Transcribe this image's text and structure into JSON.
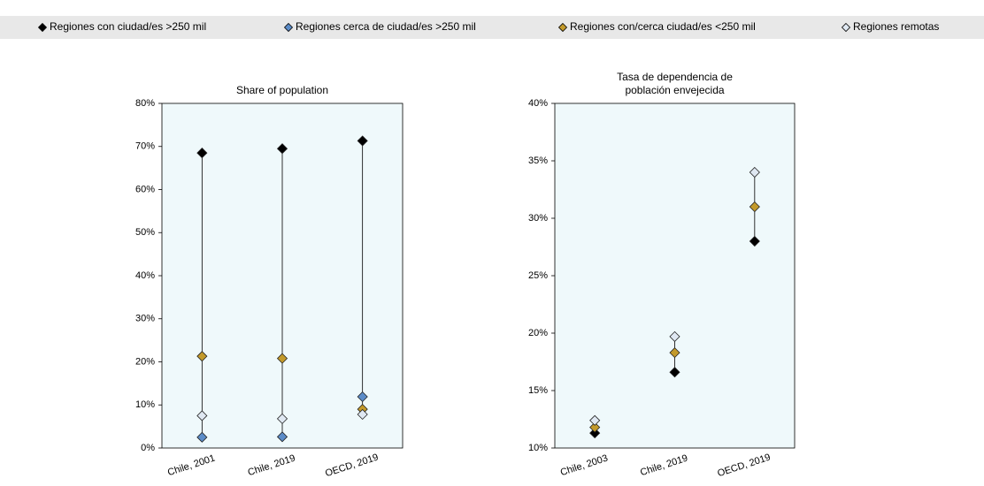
{
  "chart_data": [
    {
      "type": "dot",
      "title": [
        "Share of population"
      ],
      "legend_position": "top",
      "categories": [
        "Chile, 2001",
        "Chile, 2019",
        "OECD, 2019"
      ],
      "series": [
        {
          "name": "Regiones con ciudad/es >250 mil",
          "color": "#000000",
          "values": [
            68.5,
            69.5,
            71.3
          ]
        },
        {
          "name": "Regiones cerca de ciudad/es >250 mil",
          "color": "#5b8cc8",
          "values": [
            2.5,
            2.6,
            11.9
          ]
        },
        {
          "name": "Regiones con/cerca ciudad/es <250 mil",
          "color": "#c39a2b",
          "values": [
            21.3,
            20.8,
            9.0
          ]
        },
        {
          "name": "Regiones remotas",
          "color": "#dfe8f2",
          "values": [
            7.5,
            6.8,
            7.8
          ]
        }
      ],
      "ylim": [
        0,
        80
      ],
      "yticks": [
        {
          "value": 0,
          "label": "0%"
        },
        {
          "value": 10,
          "label": "10%"
        },
        {
          "value": 20,
          "label": "20%"
        },
        {
          "value": 30,
          "label": "30%"
        },
        {
          "value": 40,
          "label": "40%"
        },
        {
          "value": 50,
          "label": "50%"
        },
        {
          "value": 60,
          "label": "60%"
        },
        {
          "value": 70,
          "label": "70%"
        },
        {
          "value": 80,
          "label": "80%"
        }
      ]
    },
    {
      "type": "dot",
      "title": [
        "Tasa de dependencia de",
        "población envejecida"
      ],
      "categories": [
        "Chile, 2003",
        "Chile, 2019",
        "OECD, 2019"
      ],
      "series": [
        {
          "name": "Regiones con ciudad/es >250 mil",
          "color": "#000000",
          "values": [
            11.3,
            16.6,
            28.0
          ]
        },
        {
          "name": "Regiones cerca de ciudad/es >250 mil",
          "color": "#5b8cc8",
          "values": [
            null,
            null,
            null
          ]
        },
        {
          "name": "Regiones con/cerca ciudad/es <250 mil",
          "color": "#c39a2b",
          "values": [
            11.8,
            18.3,
            31.0
          ]
        },
        {
          "name": "Regiones remotas",
          "color": "#dfe8f2",
          "values": [
            12.4,
            19.7,
            34.0
          ]
        }
      ],
      "ylim": [
        10,
        40
      ],
      "yticks": [
        {
          "value": 10,
          "label": "10%"
        },
        {
          "value": 15,
          "label": "15%"
        },
        {
          "value": 20,
          "label": "20%"
        },
        {
          "value": 25,
          "label": "25%"
        },
        {
          "value": 30,
          "label": "30%"
        },
        {
          "value": 35,
          "label": "35%"
        },
        {
          "value": 40,
          "label": "40%"
        }
      ]
    }
  ]
}
